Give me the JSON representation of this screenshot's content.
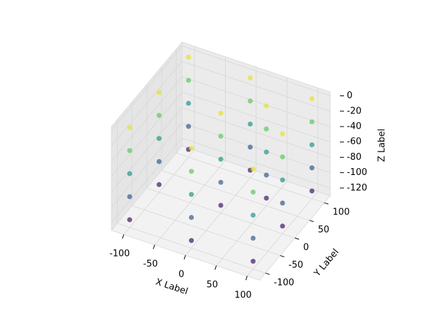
{
  "chart_data": {
    "type": "scatter3d",
    "xlabel": "X Label",
    "ylabel": "Y Label",
    "zlabel": "Z Label",
    "colormap": "viridis",
    "xlim": [
      -120,
      120
    ],
    "ylim": [
      -120,
      120
    ],
    "zlim": [
      -130,
      5
    ],
    "xticks": [
      -100,
      -50,
      0,
      50,
      100
    ],
    "yticks": [
      -100,
      -50,
      0,
      50,
      100
    ],
    "zticks": [
      -120,
      -100,
      -80,
      -60,
      -40,
      -20,
      0
    ],
    "grid": true,
    "x": [
      -100,
      -100,
      -100,
      -100,
      -100,
      0,
      0,
      0,
      0,
      0,
      100,
      100,
      100,
      100,
      100,
      -100,
      -100,
      -100,
      -100,
      -100,
      0,
      0,
      0,
      0,
      0,
      100,
      100,
      100,
      100,
      100,
      -100,
      -100,
      -100,
      -100,
      -100,
      0,
      0,
      0,
      0,
      0,
      100,
      100,
      100,
      100,
      100,
      50,
      50,
      50,
      50,
      50
    ],
    "y": [
      100,
      100,
      100,
      100,
      100,
      100,
      100,
      100,
      100,
      100,
      100,
      100,
      100,
      100,
      100,
      0,
      0,
      0,
      0,
      0,
      0,
      0,
      0,
      0,
      0,
      0,
      0,
      0,
      0,
      0,
      -100,
      -100,
      -100,
      -100,
      -100,
      -100,
      -100,
      -100,
      -100,
      -100,
      -100,
      -100,
      -100,
      -100,
      -100,
      50,
      50,
      50,
      50,
      50
    ],
    "z": [
      -120,
      -90,
      -60,
      -30,
      0,
      -120,
      -90,
      -60,
      -30,
      0,
      -120,
      -90,
      -60,
      -30,
      0,
      -120,
      -90,
      -60,
      -30,
      0,
      -120,
      -90,
      -60,
      -30,
      0,
      -120,
      -90,
      -60,
      -30,
      0,
      -120,
      -90,
      -60,
      -30,
      0,
      -120,
      -90,
      -60,
      -30,
      0,
      -120,
      -90,
      -60,
      -30,
      0,
      -120,
      -90,
      -60,
      -30,
      0
    ]
  }
}
